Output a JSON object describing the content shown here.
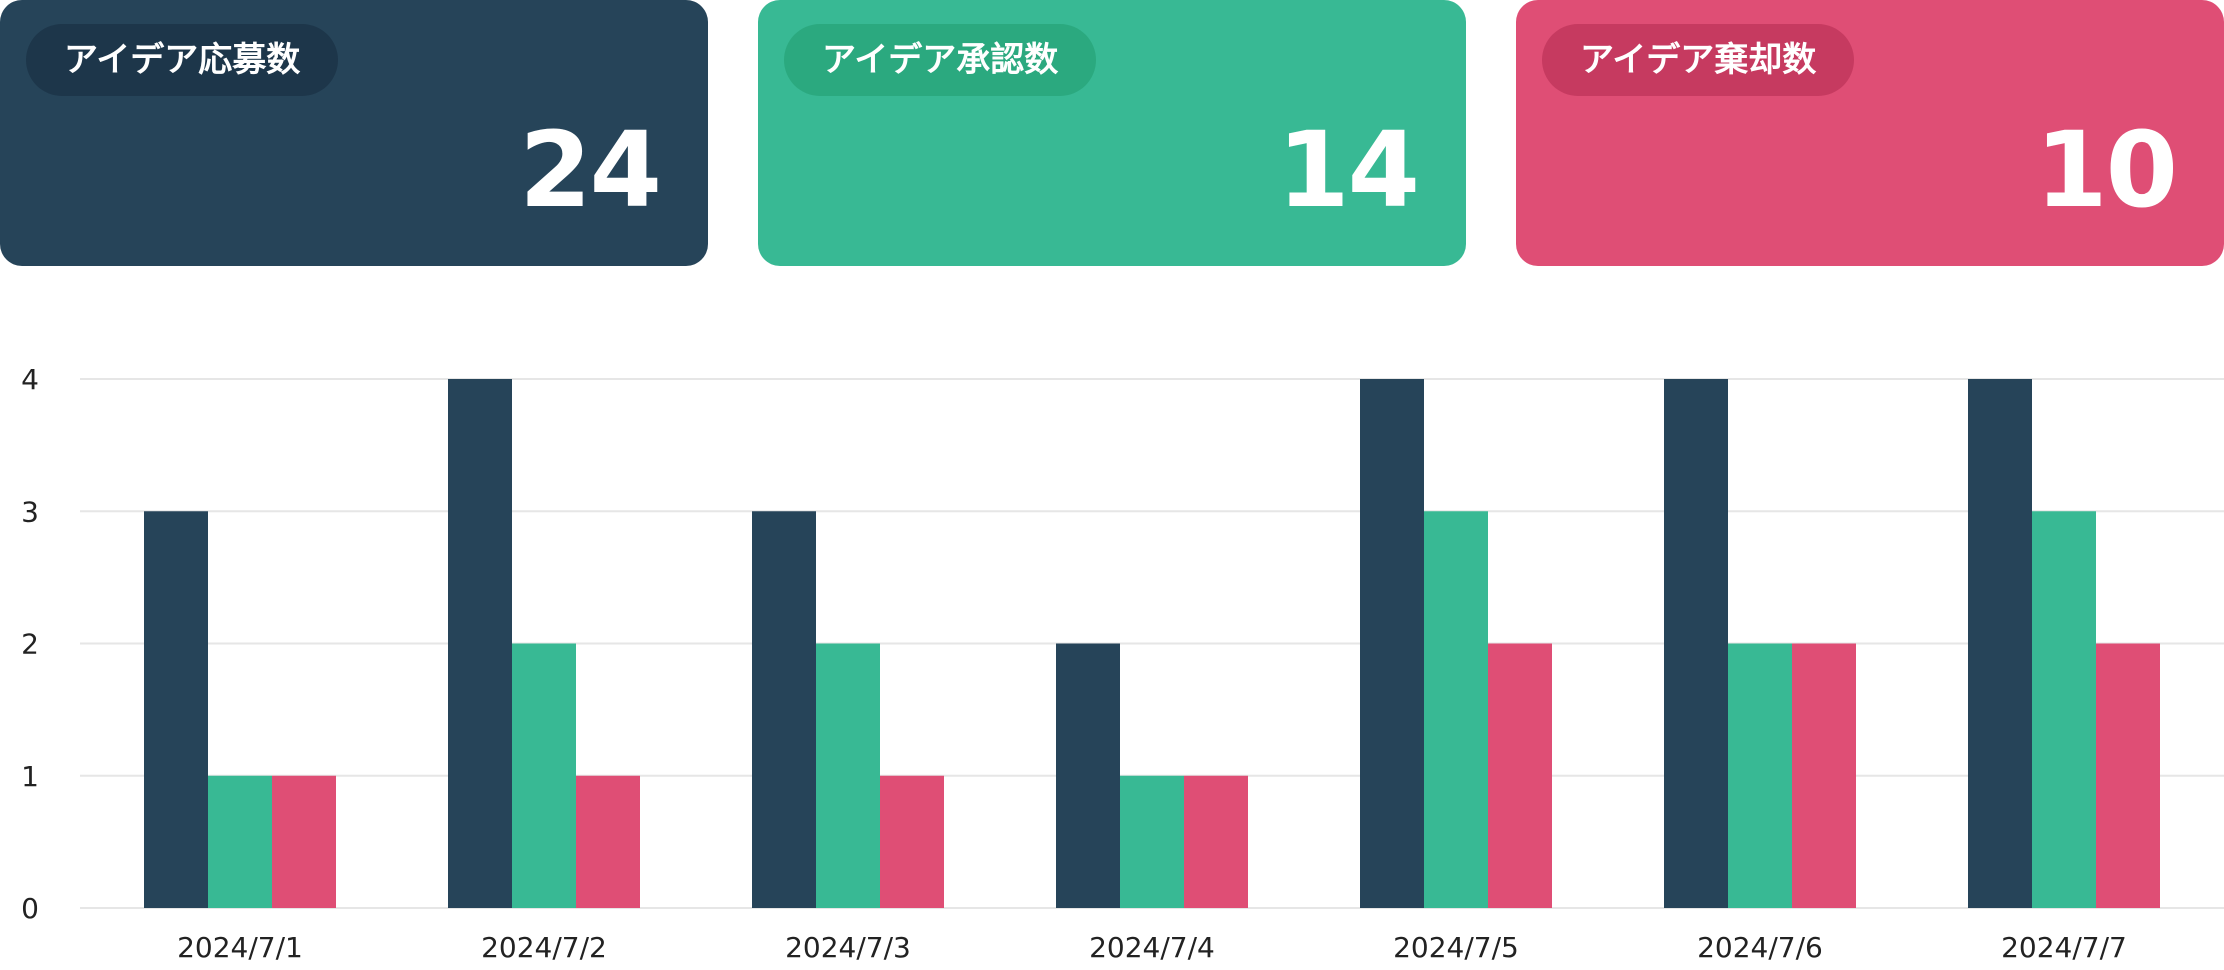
{
  "colors": {
    "applied": "#264459",
    "approved": "#38b994",
    "rejected": "#df4e75",
    "applied_pill": "#1d364a",
    "approved_pill": "#2ba97f",
    "rejected_pill": "#c63a60",
    "grid": "#e6e6e6"
  },
  "cards": [
    {
      "label": "アイデア応募数",
      "value": "24"
    },
    {
      "label": "アイデア承認数",
      "value": "14"
    },
    {
      "label": "アイデア棄却数",
      "value": "10"
    }
  ],
  "chart_data": {
    "type": "bar",
    "categories": [
      "2024/7/1",
      "2024/7/2",
      "2024/7/3",
      "2024/7/4",
      "2024/7/5",
      "2024/7/6",
      "2024/7/7"
    ],
    "series": [
      {
        "values": [
          3,
          4,
          3,
          2,
          4,
          4,
          4
        ],
        "color": "#264459"
      },
      {
        "values": [
          1,
          2,
          2,
          1,
          3,
          2,
          3
        ],
        "color": "#38b994"
      },
      {
        "values": [
          1,
          1,
          1,
          1,
          2,
          2,
          2
        ],
        "color": "#df4e75"
      }
    ],
    "ylim": [
      0,
      4
    ],
    "yticks": [
      "0",
      "1",
      "2",
      "3",
      "4"
    ],
    "grid": true,
    "legend": "none"
  }
}
